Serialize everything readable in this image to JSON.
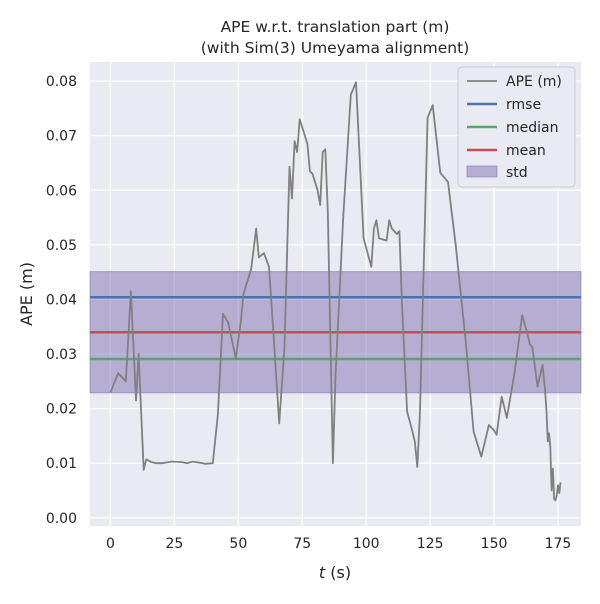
{
  "chart_data": {
    "type": "line",
    "title": [
      "APE w.r.t. translation part (m)",
      "(with Sim(3) Umeyama alignment)"
    ],
    "xlabel_var": "t",
    "xlabel_unit": " (s)",
    "ylabel": "APE (m)",
    "xlim": [
      -8,
      184
    ],
    "ylim": [
      -0.0015,
      0.0835
    ],
    "xticks": [
      0,
      25,
      50,
      75,
      100,
      125,
      150,
      175
    ],
    "yticks": [
      0.0,
      0.01,
      0.02,
      0.03,
      0.04,
      0.05,
      0.06,
      0.07,
      0.08
    ],
    "ytick_labels": [
      "0.00",
      "0.01",
      "0.02",
      "0.03",
      "0.04",
      "0.05",
      "0.06",
      "0.07",
      "0.08"
    ],
    "grid": true,
    "legend_position": "top-right",
    "colors": {
      "background": "#eaeaf2",
      "grid": "#ffffff",
      "ape": "#808080",
      "rmse": "#4c72b0",
      "median": "#55a868",
      "mean": "#c44e52",
      "std": "#8172b2"
    },
    "series": [
      {
        "name": "APE (m)",
        "x": [
          0,
          3,
          6,
          8,
          10,
          11,
          13,
          14,
          16,
          18,
          20,
          24,
          28,
          30,
          32,
          35,
          37,
          40,
          42,
          44,
          46,
          49,
          51,
          52,
          55,
          57,
          58,
          60,
          62,
          64,
          66,
          68,
          70,
          71,
          72,
          73,
          74,
          75,
          77,
          78,
          79,
          81,
          82,
          83,
          84,
          85,
          87,
          88,
          91,
          94,
          96,
          99,
          102,
          103,
          104,
          105,
          108,
          109,
          110,
          112,
          113,
          114,
          116,
          118,
          119,
          120,
          121,
          124,
          126,
          129,
          132,
          135,
          139,
          142,
          145,
          148,
          150,
          151,
          153,
          155,
          158,
          161,
          163,
          164,
          165,
          167,
          169,
          170,
          170.5,
          171,
          171.5,
          172,
          172.5,
          173,
          173.5,
          174,
          174.5,
          175,
          175.5,
          176
        ],
        "y": [
          0.023,
          0.0265,
          0.025,
          0.0415,
          0.0215,
          0.03,
          0.0088,
          0.0107,
          0.0102,
          0.01,
          0.01,
          0.0103,
          0.0102,
          0.01,
          0.0103,
          0.0101,
          0.0099,
          0.01,
          0.019,
          0.0374,
          0.0358,
          0.0292,
          0.036,
          0.041,
          0.0455,
          0.053,
          0.0477,
          0.0485,
          0.046,
          0.032,
          0.0173,
          0.031,
          0.0643,
          0.0585,
          0.069,
          0.067,
          0.073,
          0.0715,
          0.0685,
          0.0635,
          0.063,
          0.06,
          0.0573,
          0.067,
          0.0675,
          0.0562,
          0.01,
          0.026,
          0.055,
          0.0775,
          0.0798,
          0.0512,
          0.046,
          0.053,
          0.0545,
          0.0512,
          0.0508,
          0.0545,
          0.053,
          0.052,
          0.0525,
          0.039,
          0.0195,
          0.016,
          0.014,
          0.0093,
          0.019,
          0.0733,
          0.0756,
          0.0632,
          0.0615,
          0.05,
          0.032,
          0.0158,
          0.0112,
          0.017,
          0.016,
          0.0152,
          0.0222,
          0.0183,
          0.0265,
          0.0371,
          0.0338,
          0.0318,
          0.0312,
          0.024,
          0.028,
          0.023,
          0.0195,
          0.014,
          0.0155,
          0.013,
          0.005,
          0.009,
          0.0035,
          0.0032,
          0.004,
          0.006,
          0.0045,
          0.0065
        ]
      }
    ],
    "reference_lines": [
      {
        "name": "rmse",
        "y": 0.0404
      },
      {
        "name": "median",
        "y": 0.0291
      },
      {
        "name": "mean",
        "y": 0.034
      }
    ],
    "band": {
      "name": "std",
      "y0": 0.0229,
      "y1": 0.0451
    }
  }
}
